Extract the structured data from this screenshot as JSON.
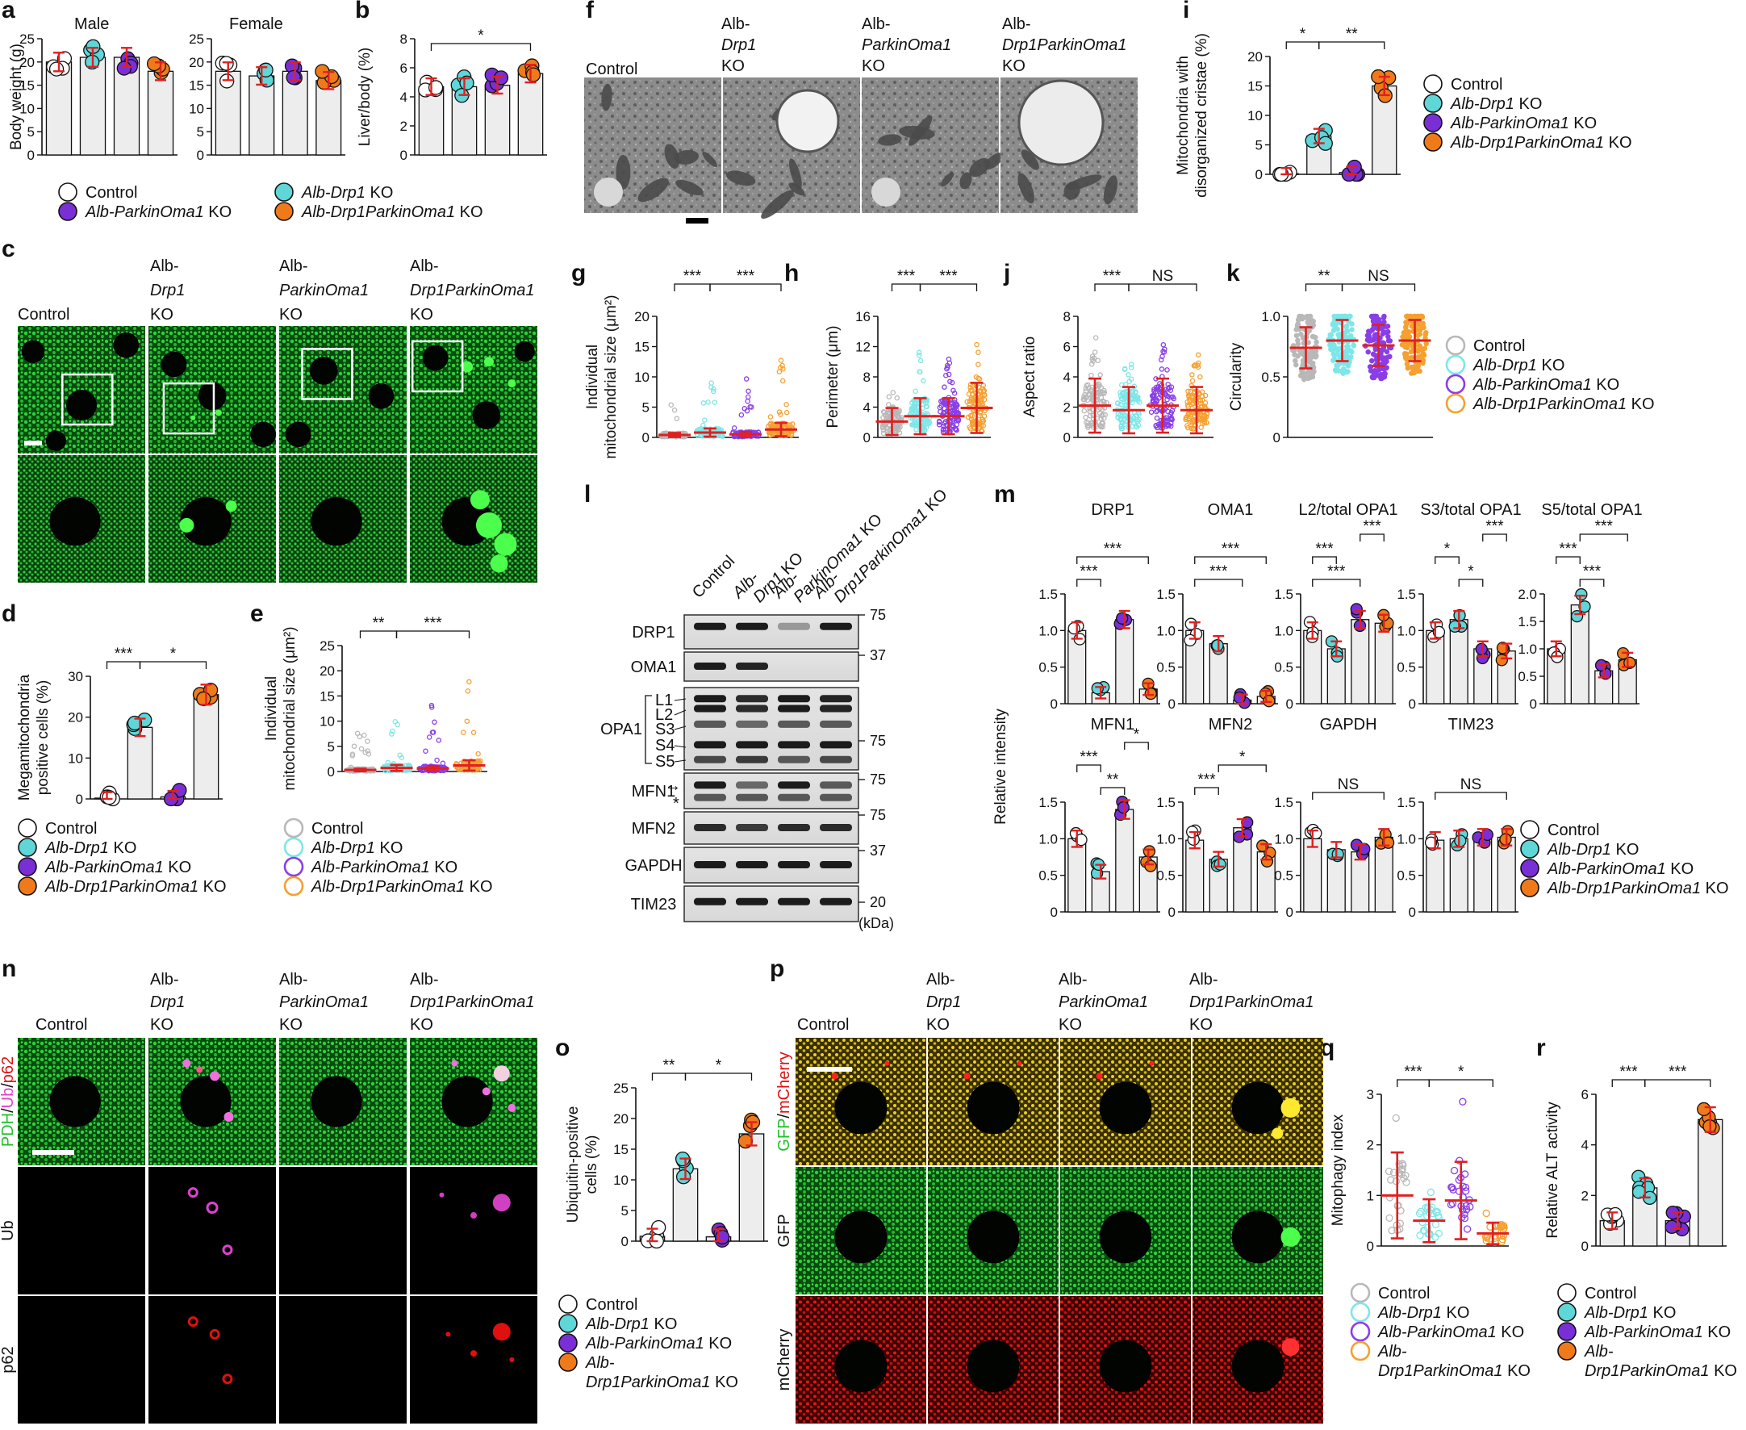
{
  "panels": {
    "a": "a",
    "b": "b",
    "c": "c",
    "d": "d",
    "e": "e",
    "f": "f",
    "g": "g",
    "h": "h",
    "i": "i",
    "j": "j",
    "k": "k",
    "l": "l",
    "m": "m",
    "n": "n",
    "o": "o",
    "p": "p",
    "q": "q",
    "r": "r"
  },
  "colors": {
    "control": "#ffffff",
    "drp1": "#5fd6d8",
    "parkin": "#7a2fd6",
    "dko": "#f07a1a",
    "err": "#e02020",
    "green": "#1fc12a",
    "magenta": "#e040d0",
    "red": "#e01010",
    "yellow": "#e6d21a"
  },
  "groups": {
    "control": "Control",
    "drp1_pre": "Alb-",
    "drp1_gene": "Drp1",
    "drp1_post": " KO",
    "parkin": "Alb-ParkinOma1",
    "dko": "Alb-Drp1ParkinOma1",
    "ko": "KO",
    "alb": "Alb-",
    "drp1": "Drp1",
    "parkin_oma1": "ParkinOma1",
    "drp1parkinoma1": "Drp1ParkinOma1"
  },
  "image_headers": {
    "c": [
      "Control",
      "Alb-",
      "Drp1",
      "KO",
      "Alb-",
      "ParkinOma1",
      "KO",
      "Alb-",
      "Drp1ParkinOma1",
      "KO"
    ],
    "f": [
      "Control",
      "Alb-",
      "Drp1",
      "KO",
      "Alb-",
      "ParkinOma1",
      "KO",
      "Alb-",
      "Drp1ParkinOma1",
      "KO"
    ]
  },
  "stain_labels": {
    "n_merge": [
      "PDH",
      "/",
      "Ub",
      "/",
      "p62"
    ],
    "n_ub": "Ub",
    "n_p62": "p62",
    "p_merge": [
      "GFP",
      "/",
      "mCherry"
    ],
    "p_gfp": "GFP",
    "p_mcherry": "mCherry"
  },
  "western": {
    "lanes": [
      "Control",
      "Alb-",
      "Drp1 KO",
      "Alb-",
      "ParkinOma1 KO",
      "Alb-",
      "Drp1ParkinOma1 KO"
    ],
    "rows": [
      "DRP1",
      "OMA1",
      "OPA1",
      "MFN1",
      "MFN2",
      "GAPDH",
      "TIM23"
    ],
    "opa1_bands": [
      "L1",
      "L2",
      "S3",
      "S4",
      "S5"
    ],
    "mfn1_marks": [
      "→",
      "*"
    ],
    "markers": [
      "75",
      "37",
      "75",
      "75",
      "75",
      "37",
      "20"
    ],
    "unit": "(kDa)"
  },
  "chart_data": [
    {
      "id": "a_male",
      "type": "bar",
      "title": "Male",
      "ylabel": "Body weight (g)",
      "ylim": [
        0,
        25
      ],
      "yticks": [
        "0",
        "5",
        "10",
        "15",
        "20",
        "25"
      ],
      "values": [
        20,
        21,
        21,
        18
      ]
    },
    {
      "id": "a_female",
      "type": "bar",
      "title": "Female",
      "ylim": [
        0,
        25
      ],
      "yticks": [
        "0",
        "5",
        "10",
        "15",
        "20",
        "25"
      ],
      "values": [
        18,
        17,
        18,
        16
      ]
    },
    {
      "id": "b",
      "type": "bar",
      "ylabel": "Liver/body (%)",
      "ylim": [
        0,
        8
      ],
      "yticks": [
        "0",
        "2",
        "4",
        "6",
        "8"
      ],
      "values": [
        4.7,
        4.7,
        4.8,
        5.6
      ],
      "significance": [
        "*"
      ]
    },
    {
      "id": "d",
      "type": "bar",
      "ylabel": [
        "Megamitochondria",
        "positive cells (%)"
      ],
      "ylim": [
        0,
        30
      ],
      "yticks": [
        "0",
        "10",
        "20",
        "30"
      ],
      "values": [
        0.2,
        17.5,
        0.5,
        25.5
      ],
      "significance": [
        "***",
        "*"
      ]
    },
    {
      "id": "e",
      "type": "scatter",
      "ylabel": [
        "Individual",
        "mitochondrial size (μm²)"
      ],
      "ylim": [
        0,
        25
      ],
      "yticks": [
        "0",
        "5",
        "10",
        "15",
        "20",
        "25"
      ],
      "medians": [
        0.3,
        0.7,
        0.6,
        1.2
      ],
      "significance": [
        "**",
        "***"
      ]
    },
    {
      "id": "g",
      "type": "scatter",
      "ylabel": [
        "Individual",
        "mitochondrial size (μm²)"
      ],
      "ylim": [
        0,
        20
      ],
      "yticks": [
        "0",
        "5",
        "10",
        "15",
        "20"
      ],
      "medians": [
        0.4,
        0.8,
        0.5,
        1.3
      ],
      "significance": [
        "***",
        "***"
      ]
    },
    {
      "id": "h",
      "type": "scatter",
      "ylabel": "Perimeter (μm)",
      "ylim": [
        0,
        16
      ],
      "yticks": [
        "0",
        "4",
        "8",
        "12",
        "16"
      ],
      "medians": [
        2.1,
        2.8,
        2.8,
        3.9
      ],
      "significance": [
        "***",
        "***"
      ]
    },
    {
      "id": "i",
      "type": "bar",
      "ylabel": [
        "Mitochondria with",
        "disorganized cristae (%)"
      ],
      "ylim": [
        0,
        20
      ],
      "yticks": [
        "0",
        "5",
        "10",
        "15",
        "20"
      ],
      "values": [
        0.1,
        6.5,
        0.3,
        15
      ],
      "significance": [
        "*",
        "**"
      ]
    },
    {
      "id": "j",
      "type": "scatter",
      "ylabel": "Aspect ratio",
      "ylim": [
        0,
        8
      ],
      "yticks": [
        "0",
        "2",
        "4",
        "6",
        "8"
      ],
      "medians": [
        2.1,
        1.8,
        2.1,
        1.8
      ],
      "significance": [
        "***",
        "NS"
      ]
    },
    {
      "id": "k",
      "type": "scatter",
      "ylabel": "Circularity",
      "ylim": [
        0,
        1.0
      ],
      "yticks": [
        "0",
        "0.5",
        "1.0"
      ],
      "medians": [
        0.74,
        0.8,
        0.76,
        0.8
      ],
      "significance": [
        "**",
        "NS"
      ]
    },
    {
      "id": "m_drp1",
      "type": "bar",
      "title": "DRP1",
      "ylim": [
        0,
        1.5
      ],
      "yticks": [
        "0",
        "0.5",
        "1.0",
        "1.5"
      ],
      "values": [
        1.0,
        0.15,
        1.15,
        0.2
      ],
      "significance": [
        "***",
        "***"
      ]
    },
    {
      "id": "m_oma1",
      "type": "bar",
      "title": "OMA1",
      "ylim": [
        0,
        1.5
      ],
      "yticks": [
        "0",
        "0.5",
        "1.0",
        "1.5"
      ],
      "values": [
        1.0,
        0.82,
        0.05,
        0.1
      ],
      "significance": [
        "***",
        "***"
      ]
    },
    {
      "id": "m_l2",
      "type": "bar",
      "title": "L2/total OPA1",
      "ylim": [
        0,
        1.5
      ],
      "yticks": [
        "0",
        "0.5",
        "1.0",
        "1.5"
      ],
      "values": [
        1.0,
        0.75,
        1.15,
        1.1
      ],
      "significance": [
        "***",
        "***",
        "***"
      ]
    },
    {
      "id": "m_s3",
      "type": "bar",
      "title": "S3/total OPA1",
      "ylim": [
        0,
        1.5
      ],
      "yticks": [
        "0",
        "0.5",
        "1.0",
        "1.5"
      ],
      "values": [
        1.0,
        1.15,
        0.75,
        0.72
      ],
      "significance": [
        "*",
        "*",
        "***"
      ]
    },
    {
      "id": "m_s5",
      "type": "bar",
      "title": "S5/total OPA1",
      "ylim": [
        0,
        2.0
      ],
      "yticks": [
        "0",
        "0.5",
        "1.0",
        "1.5",
        "2.0"
      ],
      "values": [
        1.0,
        1.8,
        0.6,
        0.8
      ],
      "significance": [
        "***",
        "***",
        "***"
      ]
    },
    {
      "id": "m_mfn1",
      "type": "bar",
      "title": "MFN1",
      "ylim": [
        0,
        1.5
      ],
      "yticks": [
        "0",
        "0.5",
        "1.0",
        "1.5"
      ],
      "values": [
        1.0,
        0.55,
        1.4,
        0.75
      ],
      "significance": [
        "***",
        "**",
        "*"
      ]
    },
    {
      "id": "m_mfn2",
      "type": "bar",
      "title": "MFN2",
      "ylim": [
        0,
        1.5
      ],
      "yticks": [
        "0",
        "0.5",
        "1.0",
        "1.5"
      ],
      "values": [
        0.98,
        0.72,
        1.15,
        0.82
      ],
      "significance": [
        "***",
        "*"
      ]
    },
    {
      "id": "m_gapdh",
      "type": "bar",
      "title": "GAPDH",
      "ylim": [
        0,
        1.5
      ],
      "yticks": [
        "0",
        "0.5",
        "1.0",
        "1.5"
      ],
      "values": [
        1.0,
        0.85,
        0.82,
        1.02
      ],
      "significance": [
        "NS"
      ]
    },
    {
      "id": "m_tim23",
      "type": "bar",
      "title": "TIM23",
      "ylim": [
        0,
        1.5
      ],
      "yticks": [
        "0",
        "0.5",
        "1.0",
        "1.5"
      ],
      "values": [
        0.98,
        1.0,
        1.02,
        1.02
      ],
      "significance": [
        "NS"
      ]
    },
    {
      "id": "o",
      "type": "bar",
      "ylabel": [
        "Ubiquitin-positive",
        "cells (%)"
      ],
      "ylim": [
        0,
        25
      ],
      "yticks": [
        "0",
        "5",
        "10",
        "15",
        "20",
        "25"
      ],
      "values": [
        0.8,
        11.8,
        0.7,
        17.5
      ],
      "significance": [
        "**",
        "*"
      ]
    },
    {
      "id": "q",
      "type": "scatter",
      "ylabel": "Mitophagy index",
      "ylim": [
        0,
        3
      ],
      "yticks": [
        "0",
        "1",
        "2",
        "3"
      ],
      "medians": [
        1.0,
        0.5,
        0.9,
        0.25
      ],
      "significance": [
        "***",
        "*"
      ]
    },
    {
      "id": "r",
      "type": "bar",
      "ylabel": "Relative ALT activity",
      "ylim": [
        0,
        6
      ],
      "yticks": [
        "0",
        "2",
        "4",
        "6"
      ],
      "values": [
        1.0,
        2.3,
        1.0,
        5.0
      ],
      "significance": [
        "***",
        "***"
      ]
    }
  ],
  "m_ylabel": "Relative intensity"
}
